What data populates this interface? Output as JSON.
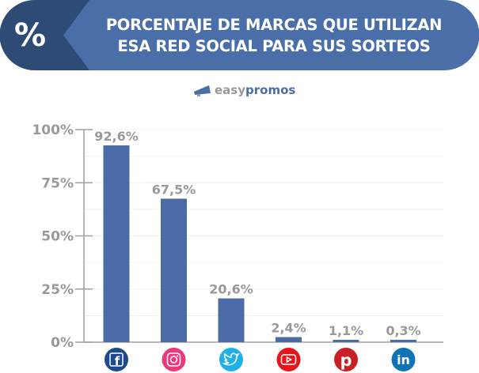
{
  "header": {
    "icon_text": "%",
    "title_line1": "PORCENTAJE DE MARCAS QUE UTILIZAN",
    "title_line2": "ESA RED SOCIAL PARA SUS SORTEOS"
  },
  "logo": {
    "part1": "easy",
    "part2": "promos"
  },
  "colors": {
    "banner": "#4a6ea8",
    "banner_dark": "#2d4b74",
    "bar": "#4a6ba7",
    "label": "#999999"
  },
  "chart_data": {
    "type": "bar",
    "categories": [
      "Facebook",
      "Instagram",
      "Twitter",
      "YouTube",
      "Pinterest",
      "LinkedIn"
    ],
    "category_icons": [
      "facebook-icon",
      "instagram-icon",
      "twitter-icon",
      "youtube-icon",
      "pinterest-icon",
      "linkedin-icon"
    ],
    "icon_colors": [
      "#1d4a8a",
      "#e83b7c",
      "#1fb0e8",
      "#e8141c",
      "#c91f26",
      "#0f74b4"
    ],
    "values": [
      92.6,
      67.5,
      20.6,
      2.4,
      1.1,
      0.3
    ],
    "data_labels": [
      "92,6%",
      "67,5%",
      "20,6%",
      "2,4%",
      "1,1%",
      "0,3%"
    ],
    "yticks": [
      "0%",
      "25%",
      "50%",
      "75%",
      "100%"
    ],
    "ylim": [
      0,
      100
    ],
    "grid": true
  }
}
